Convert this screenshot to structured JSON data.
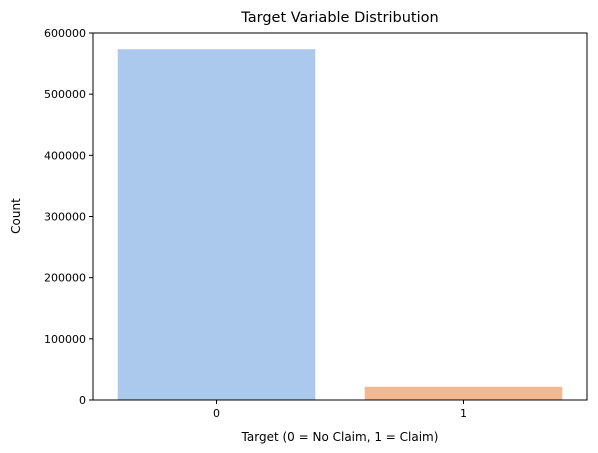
{
  "chart_data": {
    "type": "bar",
    "title": "Target Variable Distribution",
    "xlabel": "Target (0 = No Claim, 1 = Claim)",
    "ylabel": "Count",
    "categories": [
      "0",
      "1"
    ],
    "values": [
      573518,
      21694
    ],
    "colors": [
      "#abc9ed",
      "#f2b892"
    ],
    "ylim": [
      0,
      600000
    ],
    "yticks": [
      0,
      100000,
      200000,
      300000,
      400000,
      500000,
      600000
    ],
    "grid": false,
    "legend": "none"
  }
}
